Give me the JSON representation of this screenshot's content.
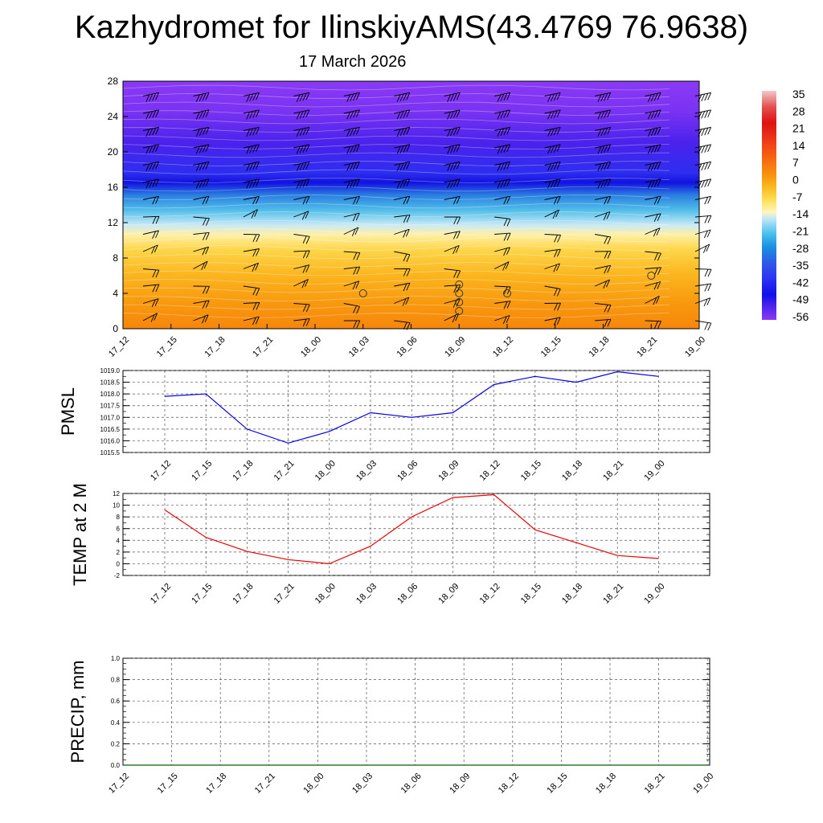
{
  "title": "Kazhydromet for IlinskiyAMS(43.4769 76.9638)",
  "subtitle": "17 March 2026",
  "chart_data": [
    {
      "type": "heatmap",
      "name": "temperature-wind-cross-section",
      "xlabel": "",
      "ylabel": "",
      "x_ticks": [
        "17_12",
        "17_15",
        "17_18",
        "17_21",
        "18_00",
        "18_03",
        "18_06",
        "18_09",
        "18_12",
        "18_15",
        "18_18",
        "18_21",
        "19_00"
      ],
      "y_ticks": [
        0,
        4,
        8,
        12,
        16,
        20,
        24,
        28
      ],
      "ylim": [
        0,
        28
      ],
      "colorbar_labels": [
        "35",
        "28",
        "21",
        "14",
        "7",
        "0",
        "-7",
        "-14",
        "-21",
        "-28",
        "-35",
        "-42",
        "-49",
        "-56"
      ],
      "colorscale": [
        "#f3c8c8",
        "#dd1111",
        "#ef3a1a",
        "#f76a0f",
        "#f8950e",
        "#fbb820",
        "#fde15a",
        "#fff5c0",
        "#bfe6f7",
        "#4fc2ee",
        "#1a92e0",
        "#2d5ae6",
        "#2d33f2",
        "#1010e8",
        "#5828ee",
        "#8a3af5"
      ],
      "circle_markers": [
        {
          "x": "18_03",
          "y": 4
        },
        {
          "x": "18_09",
          "y": 2
        },
        {
          "x": "18_09",
          "y": 3
        },
        {
          "x": "18_09",
          "y": 4
        },
        {
          "x": "18_09",
          "y": 5
        },
        {
          "x": "18_12",
          "y": 4
        },
        {
          "x": "18_21",
          "y": 6
        }
      ]
    },
    {
      "type": "line",
      "name": "pmsl",
      "ylabel": "PMSL",
      "xlabel": "",
      "x": [
        "17_12",
        "17_15",
        "17_18",
        "17_21",
        "18_00",
        "18_03",
        "18_06",
        "18_09",
        "18_12",
        "18_15",
        "18_18",
        "18_21",
        "19_00"
      ],
      "y_ticks": [
        "1015.5",
        "1016.0",
        "1016.5",
        "1017.0",
        "1017.5",
        "1018.0",
        "1018.5",
        "1019.0"
      ],
      "ylim": [
        1015.5,
        1019.0
      ],
      "series": [
        {
          "name": "PMSL",
          "color": "#0000ee",
          "values": [
            1017.9,
            1018.0,
            1016.5,
            1015.9,
            1016.4,
            1017.2,
            1017.0,
            1017.2,
            1018.4,
            1018.75,
            1018.5,
            1018.95,
            1018.75
          ]
        }
      ]
    },
    {
      "type": "line",
      "name": "temp-2m",
      "ylabel": "TEMP at 2 M",
      "xlabel": "",
      "x": [
        "17_12",
        "17_15",
        "17_18",
        "17_21",
        "18_00",
        "18_03",
        "18_06",
        "18_09",
        "18_12",
        "18_15",
        "18_18",
        "18_21",
        "19_00"
      ],
      "y_ticks": [
        "-2",
        "0",
        "2",
        "4",
        "6",
        "8",
        "10",
        "12"
      ],
      "ylim": [
        -2,
        12
      ],
      "series": [
        {
          "name": "TEMP at 2 M",
          "color": "#ee0000",
          "values": [
            9.2,
            4.5,
            2.1,
            0.7,
            0.0,
            3.0,
            8.0,
            11.3,
            11.8,
            5.8,
            3.6,
            1.4,
            0.9
          ]
        }
      ]
    },
    {
      "type": "line",
      "name": "precip",
      "ylabel": "PRECIP, mm",
      "xlabel": "",
      "x": [
        "17_12",
        "17_15",
        "17_18",
        "17_21",
        "18_00",
        "18_03",
        "18_06",
        "18_09",
        "18_12",
        "18_15",
        "18_18",
        "18_21",
        "19_00"
      ],
      "y_ticks": [
        "0.0",
        "0.2",
        "0.4",
        "0.6",
        "0.8",
        "1.0"
      ],
      "ylim": [
        0,
        1.0
      ],
      "series": [
        {
          "name": "PRECIP",
          "color": "#006400",
          "values": [
            0,
            0,
            0,
            0,
            0,
            0,
            0,
            0,
            0,
            0,
            0,
            0,
            0
          ]
        }
      ]
    }
  ]
}
